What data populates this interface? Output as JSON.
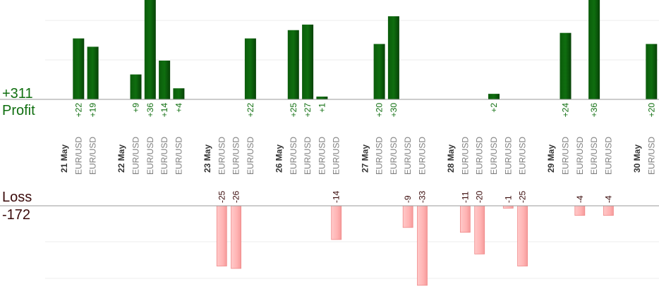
{
  "chart_data": {
    "type": "bar",
    "profit": {
      "total_label": "+311",
      "label": "Profit",
      "color": "#0f6e0f",
      "label_color": "#0f6e0f",
      "ylim": [
        0,
        44
      ]
    },
    "loss": {
      "total_label": "-172",
      "label": "Loss",
      "color": "#ffb3b3",
      "label_color": "#3a0a0a",
      "ylim": [
        -36,
        0
      ]
    },
    "grid": true,
    "categories": [
      {
        "date": "21 May"
      },
      {
        "label": "EUR/USD",
        "value": 22
      },
      {
        "label": "EUR/USD",
        "value": 19
      },
      {
        "label": ""
      },
      {
        "date": "22 May"
      },
      {
        "label": "EUR/USD",
        "value": 9
      },
      {
        "label": "EUR/USD",
        "value": 36
      },
      {
        "label": "EUR/USD",
        "value": 14
      },
      {
        "label": "EUR/USD",
        "value": 4
      },
      {
        "label": ""
      },
      {
        "date": "23 May"
      },
      {
        "label": "EUR/USD",
        "value": -25
      },
      {
        "label": "EUR/USD",
        "value": -26
      },
      {
        "label": "EUR/USD",
        "value": 22
      },
      {
        "label": ""
      },
      {
        "date": "26 May"
      },
      {
        "label": "EUR/USD",
        "value": 25
      },
      {
        "label": "EUR/USD",
        "value": 27
      },
      {
        "label": "EUR/USD",
        "value": 1
      },
      {
        "label": "EUR/USD",
        "value": -14
      },
      {
        "label": ""
      },
      {
        "date": "27 May"
      },
      {
        "label": "EUR/USD",
        "value": 20
      },
      {
        "label": "EUR/USD",
        "value": 30
      },
      {
        "label": "EUR/USD",
        "value": -9
      },
      {
        "label": "EUR/USD",
        "value": -33
      },
      {
        "label": ""
      },
      {
        "date": "28 May"
      },
      {
        "label": "EUR/USD",
        "value": -11
      },
      {
        "label": "EUR/USD",
        "value": -20
      },
      {
        "label": "EUR/USD",
        "value": 2
      },
      {
        "label": "EUR/USD",
        "value": -1
      },
      {
        "label": "EUR/USD",
        "value": -25
      },
      {
        "label": ""
      },
      {
        "date": "29 May"
      },
      {
        "label": "EUR/USD",
        "value": 24
      },
      {
        "label": "EUR/USD",
        "value": -4
      },
      {
        "label": "EUR/USD",
        "value": 36
      },
      {
        "label": "EUR/USD",
        "value": -4
      },
      {
        "label": ""
      },
      {
        "date": "30 May"
      },
      {
        "label": "EUR/USD",
        "value": 20
      }
    ]
  }
}
